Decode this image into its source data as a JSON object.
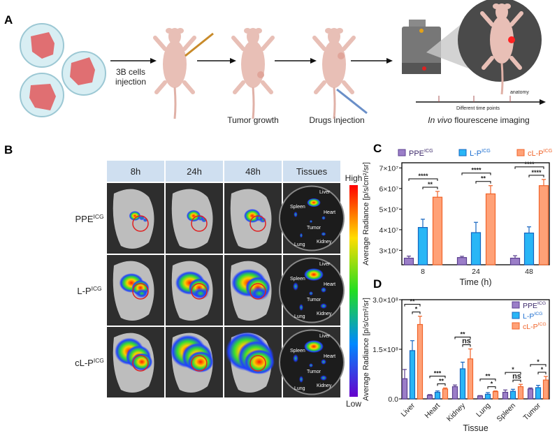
{
  "panel_labels": [
    "A",
    "B",
    "C",
    "D"
  ],
  "panel_a": {
    "step1": "3B cells",
    "step1b": "injection",
    "step2": "Tumor growth",
    "step3": "Drugs injection",
    "step4_italic": "In vivo",
    "step4": " flourescene imaging",
    "timeline_label": "Different time points",
    "timeline_end": "anatomy"
  },
  "panel_b": {
    "columns": [
      "8h",
      "24h",
      "48h",
      "Tissues"
    ],
    "rows": [
      {
        "base": "PPE",
        "sup": "ICG"
      },
      {
        "base": "L-P",
        "sup": "ICG"
      },
      {
        "base": "cL-P",
        "sup": "ICG"
      }
    ],
    "organs": [
      "Liver",
      "Spleen",
      "Heart",
      "Tumor",
      "Lung",
      "Kidney"
    ],
    "colorbar_high": "High",
    "colorbar_low": "Low"
  },
  "legend": [
    {
      "base": "PPE",
      "sup": "ICG",
      "fill": "#9b7ec8",
      "stroke": "#5b3f8f",
      "text": "#3d2a6b"
    },
    {
      "base": "L-P",
      "sup": "ICG",
      "fill": "#29b6f6",
      "stroke": "#1565c0",
      "text": "#1e6fd0"
    },
    {
      "base": "cL-P",
      "sup": "ICG",
      "fill": "#ffa177",
      "stroke": "#f0642a",
      "text": "#f0642a"
    }
  ],
  "chart_data": [
    {
      "type": "bar",
      "panel": "C",
      "xlabel": "Time (h)",
      "ylabel": "Average Radiance [p/s/cm²/sr]",
      "categories": [
        "8",
        "24",
        "48"
      ],
      "yticks": [
        "3×10⁷",
        "4×10⁷",
        "5×10⁷",
        "6×10⁷",
        "7×10⁷"
      ],
      "ytick_values": [
        30000000.0,
        40000000.0,
        50000000.0,
        60000000.0,
        70000000.0
      ],
      "ylim": [
        23000000.0,
        72500000.0
      ],
      "series": [
        {
          "name": "PPE^ICG",
          "values": [
            26200000.0,
            26500000.0,
            26200000.0
          ],
          "errors": [
            1000000.0,
            600000.0,
            1200000.0
          ]
        },
        {
          "name": "L-P^ICG",
          "values": [
            41100000.0,
            38600000.0,
            38400000.0
          ],
          "errors": [
            4000000.0,
            5000000.0,
            3000000.0
          ]
        },
        {
          "name": "cL-P^ICG",
          "values": [
            55800000.0,
            57400000.0,
            61400000.0
          ],
          "errors": [
            2800000.0,
            4000000.0,
            3000000.0
          ]
        }
      ],
      "significance": [
        {
          "outer": "****",
          "inner": "**"
        },
        {
          "outer": "****",
          "inner": "**"
        },
        {
          "outer": "****",
          "inner": "****"
        }
      ]
    },
    {
      "type": "bar",
      "panel": "D",
      "xlabel": "Tissue",
      "ylabel": "Average Radiance [p/s/cm²/sr]",
      "categories": [
        "Liver",
        "Heart",
        "Kidney",
        "Lung",
        "Spleen",
        "Tumor"
      ],
      "yticks": [
        "0.0",
        "1.5×10⁸",
        "3.0×10⁸"
      ],
      "ytick_values": [
        0,
        150000000.0,
        300000000.0
      ],
      "ylim": [
        0,
        300000000.0
      ],
      "series": [
        {
          "name": "PPE^ICG",
          "values": [
            61000000.0,
            11000000.0,
            37000000.0,
            9000000.0,
            20000000.0,
            30000000.0
          ],
          "errors": [
            28000000.0,
            2000000.0,
            5000000.0,
            1000000.0,
            7000000.0,
            3000000.0
          ]
        },
        {
          "name": "L-P^ICG",
          "values": [
            146000000.0,
            20000000.0,
            91000000.0,
            14000000.0,
            23000000.0,
            34000000.0
          ],
          "errors": [
            30000000.0,
            4000000.0,
            20000000.0,
            5000000.0,
            6000000.0,
            7000000.0
          ]
        },
        {
          "name": "cL-P^ICG",
          "values": [
            225000000.0,
            30000000.0,
            121000000.0,
            22000000.0,
            37000000.0,
            57000000.0
          ],
          "errors": [
            25000000.0,
            3000000.0,
            30000000.0,
            2000000.0,
            7000000.0,
            11000000.0
          ]
        }
      ],
      "significance": [
        {
          "outer": "**",
          "inner": "*"
        },
        {
          "outer": "***",
          "inner": "**"
        },
        {
          "outer": "**",
          "inner": "ns"
        },
        {
          "outer": "**",
          "inner": "*"
        },
        {
          "outer": "*",
          "inner": "ns"
        },
        {
          "outer": "*",
          "inner": "*"
        }
      ],
      "legend_placement": "top-right"
    }
  ]
}
